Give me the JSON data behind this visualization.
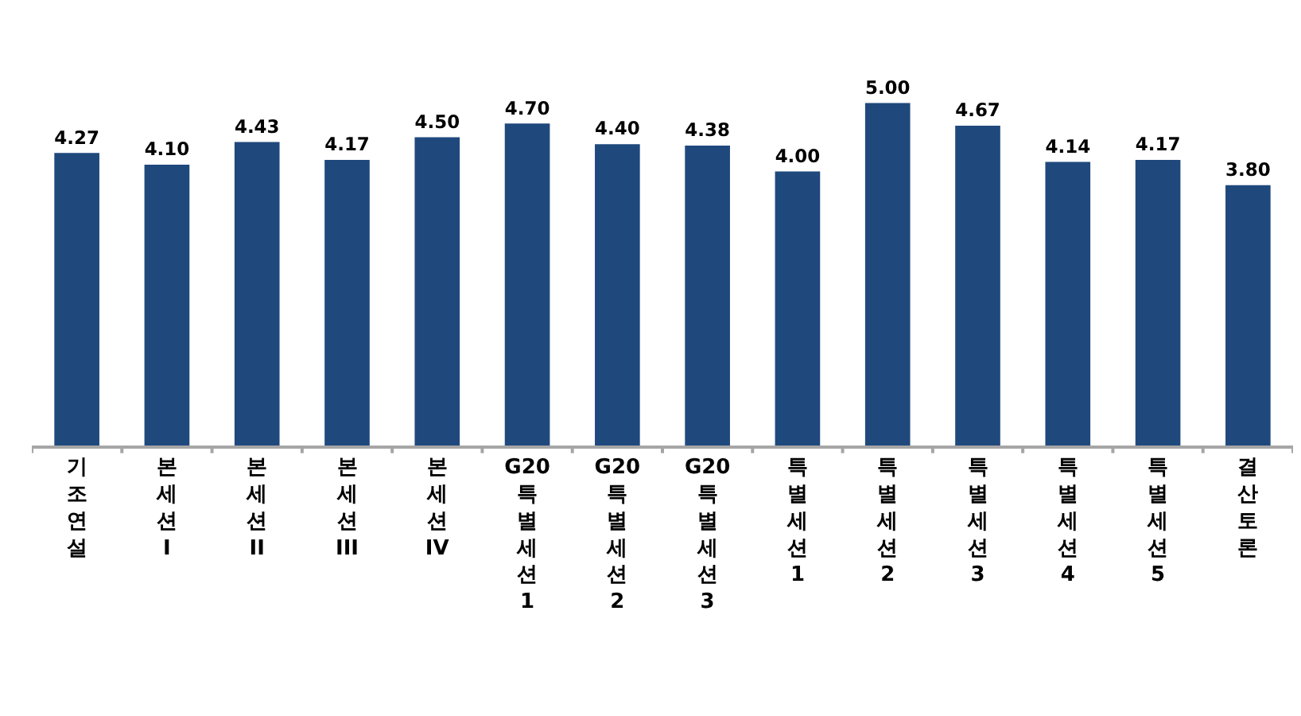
{
  "chart_data": {
    "type": "bar",
    "categories": [
      "기조연설",
      "본세션 I",
      "본세션 II",
      "본세션 III",
      "본세션 IV",
      "G20 특별세션 1",
      "G20 특별세션 2",
      "G20 특별세션 3",
      "특별세션 1",
      "특별세션 2",
      "특별세션 3",
      "특별세션 4",
      "특별세션 5",
      "결산토론"
    ],
    "values": [
      4.27,
      4.1,
      4.43,
      4.17,
      4.5,
      4.7,
      4.4,
      4.38,
      4.0,
      5.0,
      4.67,
      4.14,
      4.17,
      3.8
    ],
    "value_labels": [
      "4.27",
      "4.10",
      "4.43",
      "4.17",
      "4.50",
      "4.70",
      "4.40",
      "4.38",
      "4.00",
      "5.00",
      "4.67",
      "4.14",
      "4.17",
      "3.80"
    ],
    "color": "#1f497d",
    "legend": false
  }
}
